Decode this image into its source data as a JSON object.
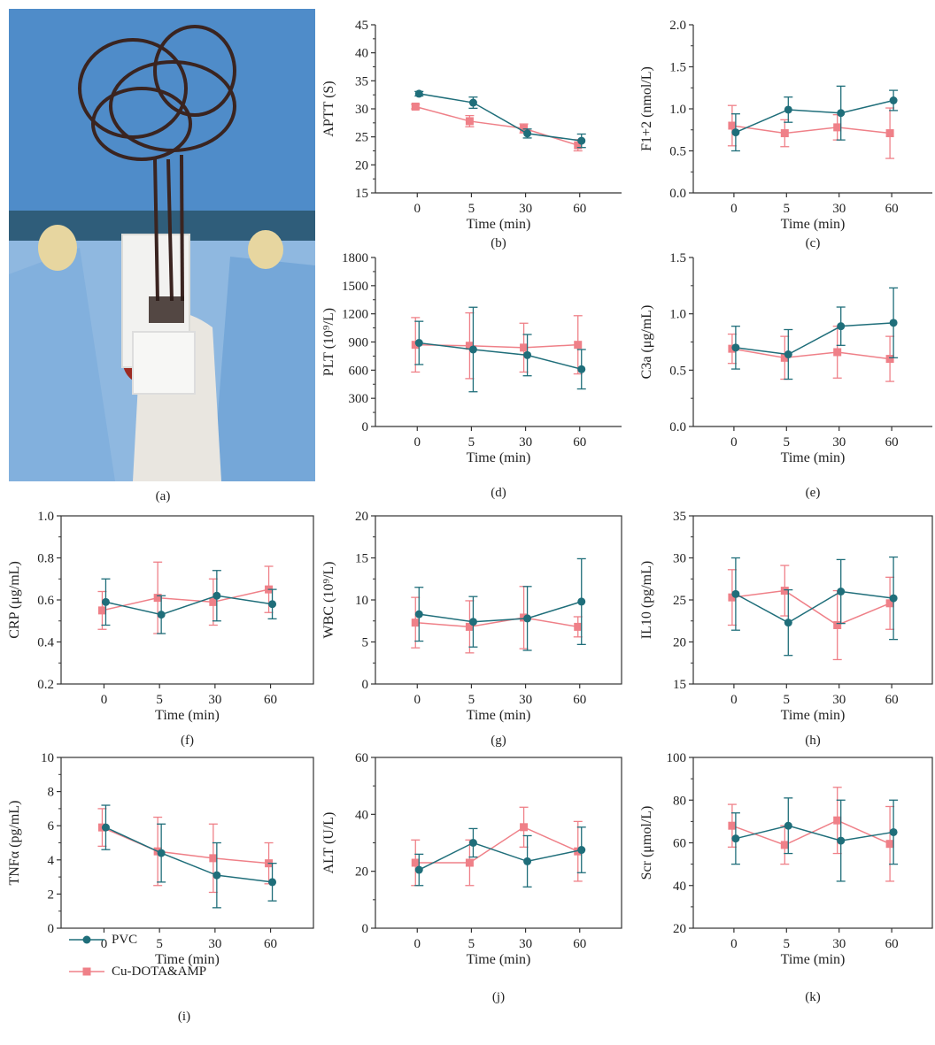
{
  "colors": {
    "pvc": "#1f6e7a",
    "cu": "#ef8088",
    "axis": "#333333"
  },
  "photo": {
    "alt": "rat-surgery-photo"
  },
  "panel_labels": {
    "a": "(a)",
    "i": "(i)"
  },
  "legend": {
    "pvc": "PVC",
    "cu": "Cu-DOTA&AMP"
  },
  "chart_data": [
    {
      "id": "b",
      "label": "(b)",
      "type": "line",
      "ylabel": "APTT (S)",
      "xlabel": "Time (min)",
      "categories": [
        "0",
        "5",
        "30",
        "60"
      ],
      "ylim": [
        15,
        45
      ],
      "yticks": [
        15,
        20,
        25,
        30,
        35,
        40,
        45
      ],
      "series": [
        {
          "name": "PVC",
          "values": [
            32.7,
            31.1,
            25.6,
            24.3
          ],
          "err": [
            0.4,
            1.0,
            0.8,
            1.2
          ]
        },
        {
          "name": "Cu-DOTA&AMP",
          "values": [
            30.4,
            27.8,
            26.5,
            23.5
          ],
          "err": [
            0.4,
            1.0,
            0.8,
            1.0
          ]
        }
      ]
    },
    {
      "id": "c",
      "label": "(c)",
      "type": "line",
      "ylabel": "F1+2 (nmol/L)",
      "xlabel": "Time (min)",
      "categories": [
        "0",
        "5",
        "30",
        "60"
      ],
      "ylim": [
        0,
        2
      ],
      "yticks": [
        "0.0",
        "0.5",
        "1.0",
        "1.5",
        "2.0"
      ],
      "series": [
        {
          "name": "PVC",
          "values": [
            0.72,
            0.99,
            0.95,
            1.1
          ],
          "err": [
            0.22,
            0.15,
            0.32,
            0.12
          ]
        },
        {
          "name": "Cu-DOTA&AMP",
          "values": [
            0.8,
            0.71,
            0.78,
            0.71
          ],
          "err": [
            0.24,
            0.16,
            0.15,
            0.3
          ]
        }
      ]
    },
    {
      "id": "d",
      "label": "(d)",
      "type": "line",
      "ylabel": "PLT (10⁹/L)",
      "xlabel": "Time (min)",
      "categories": [
        "0",
        "5",
        "30",
        "60"
      ],
      "ylim": [
        0,
        1800
      ],
      "yticks": [
        0,
        300,
        600,
        900,
        1200,
        1500,
        1800
      ],
      "series": [
        {
          "name": "PVC",
          "values": [
            890,
            820,
            760,
            610
          ],
          "err": [
            230,
            450,
            220,
            210
          ]
        },
        {
          "name": "Cu-DOTA&AMP",
          "values": [
            870,
            860,
            840,
            870
          ],
          "err": [
            290,
            350,
            260,
            310
          ]
        }
      ]
    },
    {
      "id": "e",
      "label": "(e)",
      "type": "line",
      "ylabel": "C3a (μg/mL)",
      "xlabel": "Time (min)",
      "categories": [
        "0",
        "5",
        "30",
        "60"
      ],
      "ylim": [
        0,
        1.5
      ],
      "yticks": [
        "0.0",
        "0.5",
        "1.0",
        "1.5"
      ],
      "series": [
        {
          "name": "PVC",
          "values": [
            0.7,
            0.64,
            0.89,
            0.92
          ],
          "err": [
            0.19,
            0.22,
            0.17,
            0.31
          ]
        },
        {
          "name": "Cu-DOTA&AMP",
          "values": [
            0.69,
            0.61,
            0.66,
            0.6
          ],
          "err": [
            0.13,
            0.19,
            0.23,
            0.2
          ]
        }
      ]
    },
    {
      "id": "f",
      "label": "(f)",
      "type": "line",
      "ylabel": "CRP (μg/mL)",
      "xlabel": "Time (min)",
      "categories": [
        "0",
        "5",
        "30",
        "60"
      ],
      "ylim": [
        0.2,
        1.0
      ],
      "yticks": [
        "0.2",
        "0.4",
        "0.6",
        "0.8",
        "1.0"
      ],
      "series": [
        {
          "name": "PVC",
          "values": [
            0.59,
            0.53,
            0.62,
            0.58
          ],
          "err": [
            0.11,
            0.09,
            0.12,
            0.07
          ]
        },
        {
          "name": "Cu-DOTA&AMP",
          "values": [
            0.55,
            0.61,
            0.59,
            0.65
          ],
          "err": [
            0.09,
            0.17,
            0.11,
            0.11
          ]
        }
      ]
    },
    {
      "id": "g",
      "label": "(g)",
      "type": "line",
      "ylabel": "WBC (10⁹/L)",
      "xlabel": "Time (min)",
      "categories": [
        "0",
        "5",
        "30",
        "60"
      ],
      "ylim": [
        0,
        20
      ],
      "yticks": [
        0,
        5,
        10,
        15,
        20
      ],
      "series": [
        {
          "name": "PVC",
          "values": [
            8.3,
            7.4,
            7.8,
            9.8
          ],
          "err": [
            3.2,
            3.0,
            3.8,
            5.1
          ]
        },
        {
          "name": "Cu-DOTA&AMP",
          "values": [
            7.3,
            6.8,
            7.9,
            6.8
          ],
          "err": [
            3.0,
            3.1,
            3.7,
            1.2
          ]
        }
      ]
    },
    {
      "id": "h",
      "label": "(h)",
      "type": "line",
      "ylabel": "IL10 (pg/mL)",
      "xlabel": "Time (min)",
      "categories": [
        "0",
        "5",
        "30",
        "60"
      ],
      "ylim": [
        15,
        35
      ],
      "yticks": [
        15,
        20,
        25,
        30,
        35
      ],
      "series": [
        {
          "name": "PVC",
          "values": [
            25.7,
            22.3,
            26.0,
            25.2
          ],
          "err": [
            4.3,
            3.9,
            3.8,
            4.9
          ]
        },
        {
          "name": "Cu-DOTA&AMP",
          "values": [
            25.3,
            26.1,
            22.0,
            24.6
          ],
          "err": [
            3.3,
            3.0,
            4.1,
            3.1
          ]
        }
      ]
    },
    {
      "id": "i",
      "label": "",
      "type": "line",
      "ylabel": "TNFα (pg/mL)",
      "xlabel": "Time (min)",
      "categories": [
        "0",
        "5",
        "30",
        "60"
      ],
      "ylim": [
        0,
        10
      ],
      "yticks": [
        0,
        2,
        4,
        6,
        8,
        10
      ],
      "series": [
        {
          "name": "PVC",
          "values": [
            5.9,
            4.4,
            3.1,
            2.7
          ],
          "err": [
            1.3,
            1.7,
            1.9,
            1.1
          ]
        },
        {
          "name": "Cu-DOTA&AMP",
          "values": [
            5.9,
            4.5,
            4.1,
            3.8
          ],
          "err": [
            1.1,
            2.0,
            2.0,
            1.2
          ]
        }
      ]
    },
    {
      "id": "j",
      "label": "(j)",
      "type": "line",
      "ylabel": "ALT (U/L)",
      "xlabel": "Time (min)",
      "categories": [
        "0",
        "5",
        "30",
        "60"
      ],
      "ylim": [
        0,
        60
      ],
      "yticks": [
        0,
        20,
        40,
        60
      ],
      "series": [
        {
          "name": "PVC",
          "values": [
            20.5,
            30.0,
            23.5,
            27.5
          ],
          "err": [
            5.5,
            5.0,
            9.0,
            8.0
          ]
        },
        {
          "name": "Cu-DOTA&AMP",
          "values": [
            23.0,
            23.0,
            35.5,
            27.0
          ],
          "err": [
            8.0,
            8.0,
            7.0,
            10.5
          ]
        }
      ]
    },
    {
      "id": "k",
      "label": "(k)",
      "type": "line",
      "ylabel": "Scr (μmol/L)",
      "xlabel": "Time (min)",
      "categories": [
        "0",
        "5",
        "30",
        "60"
      ],
      "ylim": [
        20,
        100
      ],
      "yticks": [
        20,
        40,
        60,
        80,
        100
      ],
      "series": [
        {
          "name": "PVC",
          "values": [
            62,
            68,
            61,
            65
          ],
          "err": [
            12,
            13,
            19,
            15
          ]
        },
        {
          "name": "Cu-DOTA&AMP",
          "values": [
            68,
            59,
            70.5,
            59.5
          ],
          "err": [
            10,
            9,
            15.5,
            17.5
          ]
        }
      ]
    }
  ]
}
